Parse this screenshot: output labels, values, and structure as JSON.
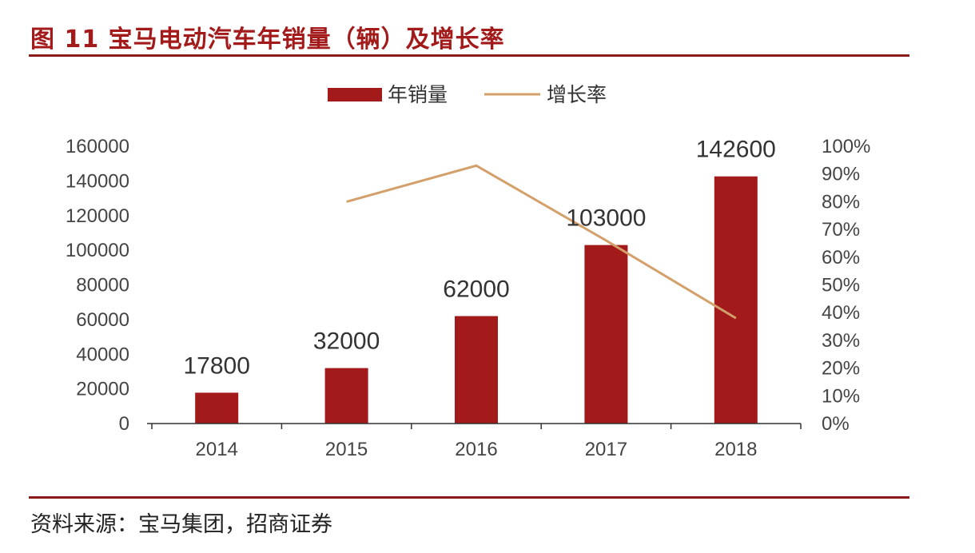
{
  "figure": {
    "title": "图 11  宝马电动汽车年销量（辆）及增长率",
    "source": "资料来源：宝马集团，招商证券"
  },
  "colors": {
    "bar": "#a31a1b",
    "line": "#d3a06b",
    "axis": "#333333",
    "title": "#a31a1b"
  },
  "chart_data": {
    "type": "bar",
    "categories": [
      "2014",
      "2015",
      "2016",
      "2017",
      "2018"
    ],
    "series": [
      {
        "name": "年销量",
        "type": "bar",
        "axis": "left",
        "values": [
          17800,
          32000,
          62000,
          103000,
          142600
        ],
        "labels": [
          "17800",
          "32000",
          "62000",
          "103000",
          "142600"
        ]
      },
      {
        "name": "增长率",
        "type": "line",
        "axis": "right",
        "values": [
          null,
          80,
          93,
          66,
          38
        ]
      }
    ],
    "ylim_left": [
      0,
      160000
    ],
    "yticks_left": [
      "0",
      "20000",
      "40000",
      "60000",
      "80000",
      "100000",
      "120000",
      "140000",
      "160000"
    ],
    "ylim_right": [
      0,
      100
    ],
    "yticks_right": [
      "0%",
      "10%",
      "20%",
      "30%",
      "40%",
      "50%",
      "60%",
      "70%",
      "80%",
      "90%",
      "100%"
    ],
    "legend_position": "top-center",
    "grid": false
  }
}
